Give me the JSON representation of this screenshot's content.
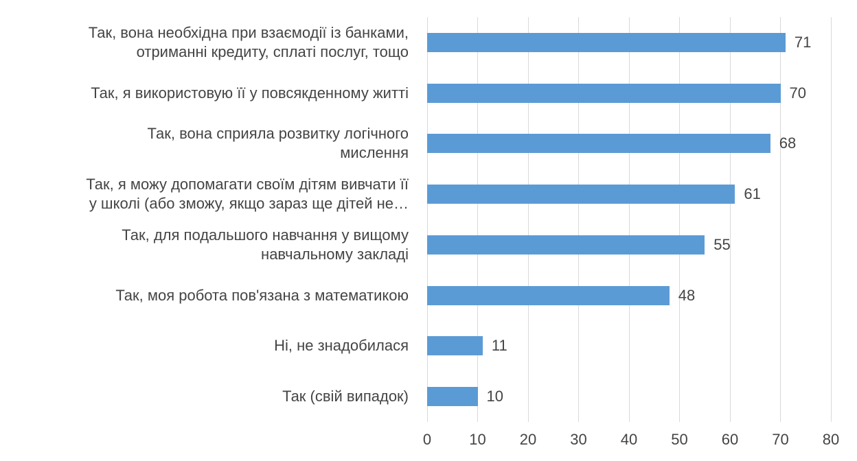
{
  "chart_data": {
    "type": "bar",
    "orientation": "horizontal",
    "title": "",
    "xlabel": "",
    "ylabel": "",
    "categories": [
      "Так, вона необхідна при взаємодії із банками, отриманні кредиту, сплаті послуг, тощо",
      "Так, я використовую її у повсякденному житті",
      "Так, вона сприяла розвитку логічного мислення",
      "Так, я можу допомагати своїм дітям вивчати її у школі (або зможу, якщо зараз ще дітей не…",
      "Так, для подальшого навчання у вищому навчальному закладі",
      "Так, моя робота пов'язана з математикою",
      "Ні, не знадобилася",
      "Так (свій випадок)"
    ],
    "category_display_lines": [
      [
        "Так, вона необхідна при взаємодії із банками,",
        "отриманні кредиту, сплаті послуг, тощо"
      ],
      [
        "Так, я використовую її у повсякденному житті"
      ],
      [
        "Так, вона сприяла розвитку логічного",
        "мислення"
      ],
      [
        "Так, я можу допомагати своїм дітям вивчати її",
        "у школі (або зможу, якщо зараз ще дітей не…"
      ],
      [
        "Так, для подальшого навчання у вищому",
        "навчальному закладі"
      ],
      [
        "Так, моя робота пов'язана з математикою"
      ],
      [
        "Ні, не знадобилася"
      ],
      [
        "Так (свій випадок)"
      ]
    ],
    "values": [
      71,
      70,
      68,
      61,
      55,
      48,
      11,
      10
    ],
    "data_labels": true,
    "xlim": [
      0,
      80
    ],
    "xticks": [
      0,
      10,
      20,
      30,
      40,
      50,
      60,
      70,
      80
    ],
    "grid": true,
    "legend": false,
    "colors": {
      "bar": "#5B9BD5",
      "gridline": "#D9D9D9",
      "text": "#444444",
      "background": "#FFFFFF"
    }
  }
}
